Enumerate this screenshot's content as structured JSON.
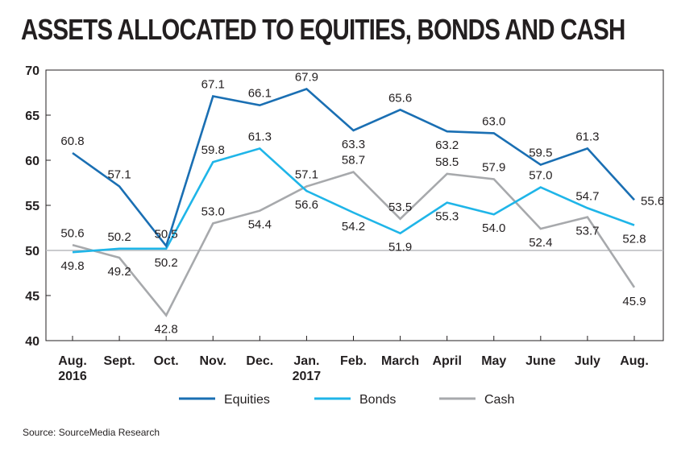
{
  "chart_data": {
    "type": "line",
    "title": "ASSETS ALLOCATED TO EQUITIES, BONDS AND CASH",
    "categories": [
      [
        "Aug.",
        "2016"
      ],
      [
        "Sept."
      ],
      [
        "Oct."
      ],
      [
        "Nov."
      ],
      [
        "Dec."
      ],
      [
        "Jan.",
        "2017"
      ],
      [
        "Feb."
      ],
      [
        "March"
      ],
      [
        "April"
      ],
      [
        "May"
      ],
      [
        "June"
      ],
      [
        "July"
      ],
      [
        "Aug."
      ]
    ],
    "ylim": [
      40,
      70
    ],
    "yticks": [
      40,
      45,
      50,
      55,
      60,
      65,
      70
    ],
    "reference_line": 50,
    "series": [
      {
        "name": "Equities",
        "color": "#1a6fb3",
        "values": [
          60.8,
          57.1,
          50.5,
          67.1,
          66.1,
          67.9,
          63.3,
          65.6,
          63.2,
          63.0,
          59.5,
          61.3,
          55.6
        ],
        "labels": [
          "60.8",
          "57.1",
          "50.5",
          "67.1",
          "66.1",
          "67.9",
          "63.3",
          "65.6",
          "63.2",
          "63.0",
          "59.5",
          "61.3",
          "55.6"
        ]
      },
      {
        "name": "Bonds",
        "color": "#1fb5e8",
        "values": [
          49.8,
          50.2,
          50.2,
          59.8,
          61.3,
          56.6,
          54.2,
          51.9,
          55.3,
          54.0,
          57.0,
          54.7,
          52.8
        ],
        "labels": [
          "49.8",
          "50.2",
          "50.2",
          "59.8",
          "61.3",
          "56.6",
          "54.2",
          "51.9",
          "55.3",
          "54.0",
          "57.0",
          "54.7",
          "52.8"
        ]
      },
      {
        "name": "Cash",
        "color": "#a7a9ac",
        "values": [
          50.6,
          49.2,
          42.8,
          53.0,
          54.4,
          57.1,
          58.7,
          53.5,
          58.5,
          57.9,
          52.4,
          53.7,
          45.9
        ],
        "labels": [
          "50.6",
          "49.2",
          "42.8",
          "53.0",
          "54.4",
          "57.1",
          "58.7",
          "53.5",
          "58.5",
          "57.9",
          "52.4",
          "53.7",
          "45.9"
        ]
      }
    ],
    "legend": {
      "position": "bottom-center"
    }
  },
  "source": "Source: SourceMedia Research"
}
